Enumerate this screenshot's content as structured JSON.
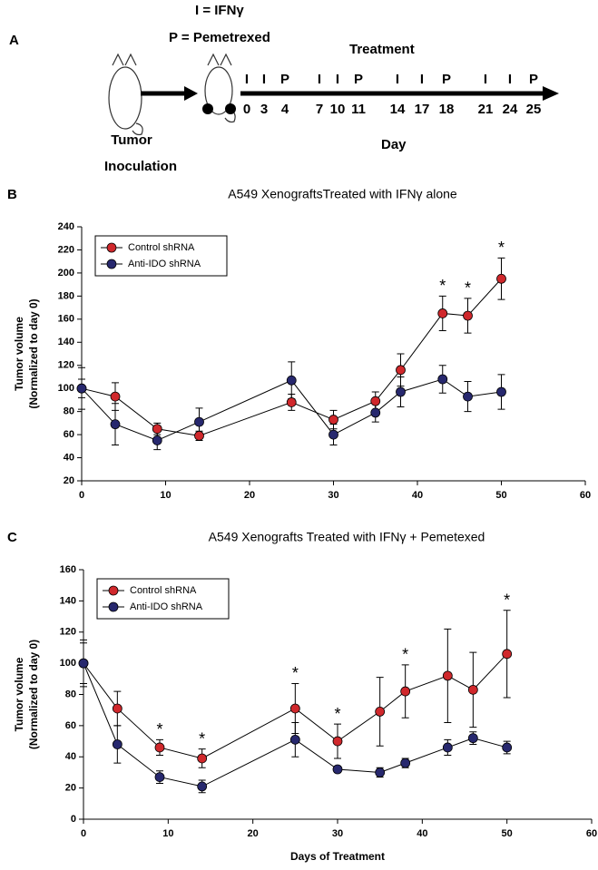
{
  "panel_a": {
    "label": "A",
    "legend_lines": [
      "I = IFNγ",
      "P = Pemetrexed"
    ],
    "treatment_label": "Treatment",
    "schedule": [
      {
        "marker": "I",
        "day": 0
      },
      {
        "marker": "I",
        "day": 3
      },
      {
        "marker": "P",
        "day": 4
      },
      {
        "marker": "I",
        "day": 7
      },
      {
        "marker": "I",
        "day": 10
      },
      {
        "marker": "P",
        "day": 11
      },
      {
        "marker": "I",
        "day": 14
      },
      {
        "marker": "I",
        "day": 17
      },
      {
        "marker": "P",
        "day": 18
      },
      {
        "marker": "I",
        "day": 21
      },
      {
        "marker": "I",
        "day": 24
      },
      {
        "marker": "P",
        "day": 25
      }
    ],
    "tumor_lines": [
      "Tumor",
      "Inoculation"
    ],
    "day_label": "Day"
  },
  "chart_data": [
    {
      "type": "line",
      "panel_label": "B",
      "title": "A549 XenograftsTreated with IFNγ alone",
      "ylabel": [
        "Tumor volume",
        "(Normalized to day 0)"
      ],
      "x": [
        0,
        4,
        9,
        14,
        25,
        30,
        35,
        38,
        43,
        46,
        50
      ],
      "series": [
        {
          "name": "Control shRNA",
          "color": "#d0282c",
          "values": [
            100,
            93,
            65,
            59,
            88,
            73,
            89,
            116,
            165,
            163,
            195
          ],
          "errors": [
            18,
            12,
            5,
            4,
            7,
            8,
            8,
            14,
            15,
            15,
            18
          ]
        },
        {
          "name": "Anti-IDO shRNA",
          "color": "#27286e",
          "values": [
            100,
            69,
            55,
            71,
            107,
            60,
            79,
            97,
            108,
            93,
            97
          ],
          "errors": [
            8,
            18,
            8,
            12,
            16,
            9,
            8,
            13,
            12,
            13,
            15
          ]
        }
      ],
      "annotations": [
        {
          "text": "*",
          "x": 43
        },
        {
          "text": "*",
          "x": 46
        },
        {
          "text": "*",
          "x": 50
        }
      ],
      "xlim": [
        0,
        60
      ],
      "xticks": [
        0,
        10,
        20,
        30,
        40,
        50,
        60
      ],
      "ylim": [
        20,
        240
      ],
      "yticks": [
        20,
        40,
        60,
        80,
        100,
        120,
        140,
        160,
        180,
        200,
        220,
        240
      ],
      "legend": "upper left"
    },
    {
      "type": "line",
      "panel_label": "C",
      "title": "A549 Xenografts Treated with IFNγ + Pemetexed",
      "ylabel": [
        "Tumor volume",
        "(Normalized to day 0)"
      ],
      "xlabel": "Days of Treatment",
      "x": [
        0,
        4,
        9,
        14,
        25,
        30,
        35,
        38,
        43,
        46,
        50
      ],
      "series": [
        {
          "name": "Control shRNA",
          "color": "#d0282c",
          "values": [
            100,
            71,
            46,
            39,
            71,
            50,
            69,
            82,
            92,
            83,
            106
          ],
          "errors": [
            15,
            11,
            5,
            6,
            16,
            11,
            22,
            17,
            30,
            24,
            28
          ]
        },
        {
          "name": "Anti-IDO shRNA",
          "color": "#27286e",
          "values": [
            100,
            48,
            27,
            21,
            51,
            32,
            30,
            36,
            46,
            52,
            46
          ],
          "errors": [
            13,
            12,
            4,
            4,
            11,
            2,
            3,
            3,
            5,
            4,
            4
          ]
        }
      ],
      "annotations": [
        {
          "text": "*",
          "x": 9
        },
        {
          "text": "*",
          "x": 14
        },
        {
          "text": "*",
          "x": 25
        },
        {
          "text": "*",
          "x": 30
        },
        {
          "text": "*",
          "x": 38
        },
        {
          "text": "*",
          "x": 50
        }
      ],
      "xlim": [
        0,
        60
      ],
      "xticks": [
        0,
        10,
        20,
        30,
        40,
        50,
        60
      ],
      "ylim": [
        0,
        160
      ],
      "yticks": [
        0,
        20,
        40,
        60,
        80,
        100,
        120,
        140,
        160
      ],
      "legend": "upper left"
    }
  ]
}
